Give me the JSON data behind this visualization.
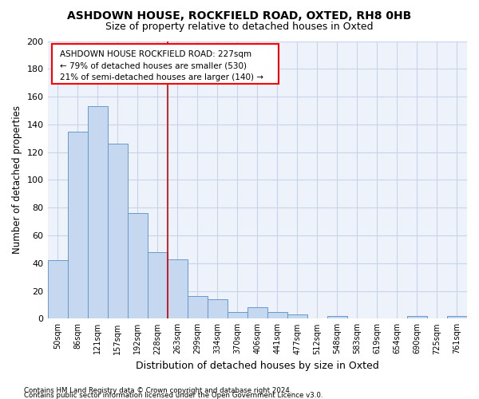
{
  "title1": "ASHDOWN HOUSE, ROCKFIELD ROAD, OXTED, RH8 0HB",
  "title2": "Size of property relative to detached houses in Oxted",
  "xlabel": "Distribution of detached houses by size in Oxted",
  "ylabel": "Number of detached properties",
  "categories": [
    "50sqm",
    "86sqm",
    "121sqm",
    "157sqm",
    "192sqm",
    "228sqm",
    "263sqm",
    "299sqm",
    "334sqm",
    "370sqm",
    "406sqm",
    "441sqm",
    "477sqm",
    "512sqm",
    "548sqm",
    "583sqm",
    "619sqm",
    "654sqm",
    "690sqm",
    "725sqm",
    "761sqm"
  ],
  "values": [
    42,
    135,
    153,
    126,
    76,
    48,
    43,
    16,
    14,
    5,
    8,
    5,
    3,
    0,
    2,
    0,
    0,
    0,
    2,
    0,
    2
  ],
  "bar_color": "#c5d8f0",
  "bar_edge_color": "#6699cc",
  "highlight_index": 5,
  "highlight_line_color": "#cc0000",
  "ylim": [
    0,
    200
  ],
  "yticks": [
    0,
    20,
    40,
    60,
    80,
    100,
    120,
    140,
    160,
    180,
    200
  ],
  "annotation_line1": "ASHDOWN HOUSE ROCKFIELD ROAD: 227sqm",
  "annotation_line2": "← 79% of detached houses are smaller (530)",
  "annotation_line3": "21% of semi-detached houses are larger (140) →",
  "footnote1": "Contains HM Land Registry data © Crown copyright and database right 2024.",
  "footnote2": "Contains public sector information licensed under the Open Government Licence v3.0.",
  "grid_color": "#c8d4e8",
  "background_color": "#eef2fb"
}
